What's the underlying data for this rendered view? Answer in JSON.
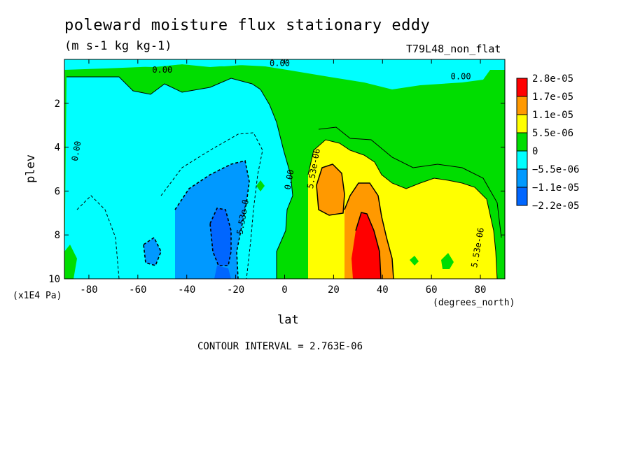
{
  "chart_data": {
    "type": "heatmap",
    "title": "poleward moisture flux stationary eddy",
    "subtitle": "(m s-1 kg kg-1)",
    "run_label": "T79L48_non_flat",
    "xlabel": "lat",
    "x_unit_label": "(degrees_north)",
    "ylabel": "plev",
    "y_unit_label": "(x1E4 Pa)",
    "contour_interval_text": "CONTOUR INTERVAL = 2.763E-06",
    "xlim": [
      -90,
      90
    ],
    "ylim": [
      10,
      0
    ],
    "x_ticks": [
      "-80",
      "-60",
      "-40",
      "-20",
      "0",
      "20",
      "40",
      "60",
      "80"
    ],
    "x_tick_values": [
      -80,
      -60,
      -40,
      -20,
      0,
      20,
      40,
      60,
      80
    ],
    "y_ticks": [
      "2",
      "4",
      "6",
      "8",
      "10"
    ],
    "y_tick_values": [
      2,
      4,
      6,
      8,
      10
    ],
    "legend": [
      {
        "label": "2.8e-05",
        "color": "#ff0000"
      },
      {
        "label": "1.7e-05",
        "color": "#ff9900"
      },
      {
        "label": "1.1e-05",
        "color": "#ffff00"
      },
      {
        "label": "5.5e-06",
        "color": "#00dd00"
      },
      {
        "label": "0",
        "color": "#00ffff"
      },
      {
        "label": "−5.5e-06",
        "color": "#0099ff"
      },
      {
        "label": "−1.1e-05",
        "color": "#0066ff"
      },
      {
        "label": "−2.2e-05",
        "color": null
      }
    ],
    "contour_labels": [
      {
        "text": "0.00",
        "lat": -50,
        "plev": 0.6
      },
      {
        "text": "0.00",
        "lat": -2,
        "plev": 0.3
      },
      {
        "text": "0.00",
        "lat": 72,
        "plev": 0.9
      },
      {
        "text": "0.00",
        "lat": -84,
        "plev": 4.2
      },
      {
        "text": "0.00",
        "lat": 3,
        "plev": 5.5
      },
      {
        "text": "5.53e-06",
        "lat": 13,
        "plev": 5.0
      },
      {
        "text": "5.53e-0",
        "lat": -16,
        "plev": 7.2
      },
      {
        "text": "5.53e-06",
        "lat": 80,
        "plev": 8.6
      }
    ],
    "regions": [
      {
        "name": "sh-negative",
        "level": "-5.5e-06",
        "lat_range": [
          -88,
          2
        ],
        "plev_range": [
          0.5,
          10
        ]
      },
      {
        "name": "sh-negative-core",
        "level": "-1.1e-05",
        "lat_range": [
          -45,
          -18
        ],
        "plev_range": [
          4.5,
          10
        ]
      },
      {
        "name": "sh-negative-min",
        "level": "-2.2e-05",
        "lat_range": [
          -30,
          -22
        ],
        "plev_range": [
          7,
          10
        ]
      },
      {
        "name": "nh-positive",
        "level": "5.5e-06",
        "lat_range": [
          10,
          85
        ],
        "plev_range": [
          3.5,
          10
        ]
      },
      {
        "name": "nh-positive-core",
        "level": "1.1e-05",
        "lat_range": [
          18,
          45
        ],
        "plev_range": [
          4,
          10
        ]
      },
      {
        "name": "nh-positive-max",
        "level": "2.8e-05",
        "lat_range": [
          26,
          38
        ],
        "plev_range": [
          7,
          10
        ]
      }
    ]
  }
}
